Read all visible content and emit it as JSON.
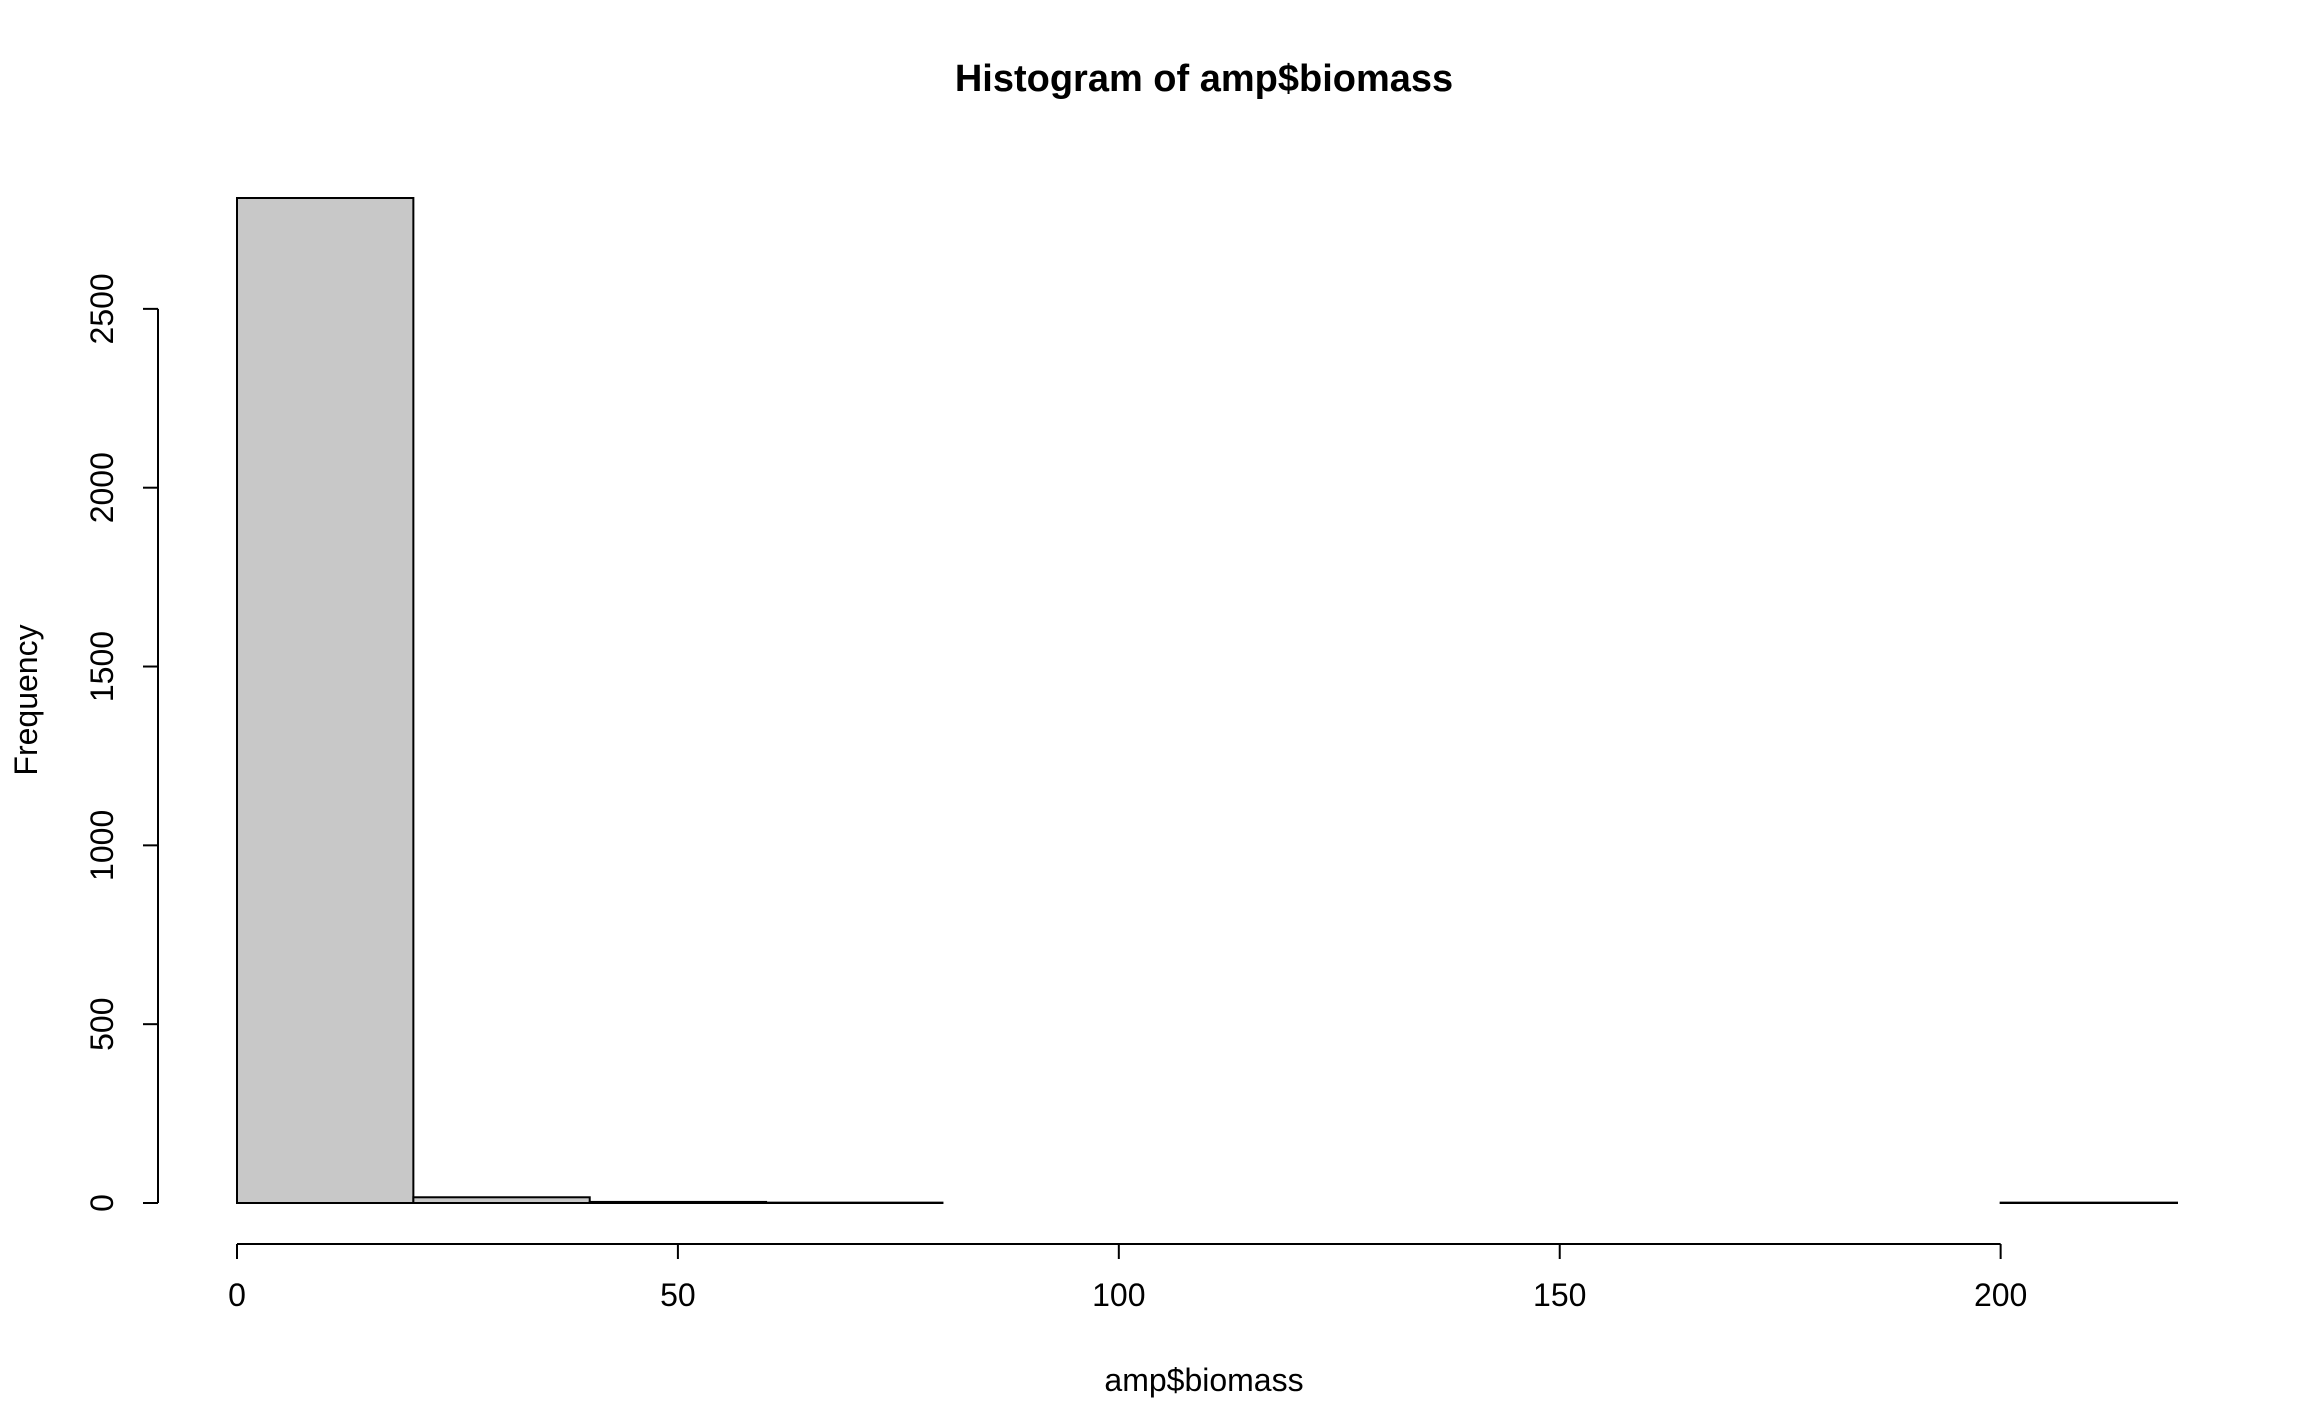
{
  "chart_data": {
    "type": "bar",
    "title": "Histogram of amp$biomass",
    "xlabel": "amp$biomass",
    "ylabel": "Frequency",
    "bins": [
      {
        "start": 0,
        "end": 20,
        "count": 2810
      },
      {
        "start": 20,
        "end": 40,
        "count": 16
      },
      {
        "start": 40,
        "end": 60,
        "count": 3
      },
      {
        "start": 60,
        "end": 80,
        "count": 1
      },
      {
        "start": 80,
        "end": 100,
        "count": 0
      },
      {
        "start": 100,
        "end": 120,
        "count": 0
      },
      {
        "start": 120,
        "end": 140,
        "count": 0
      },
      {
        "start": 140,
        "end": 160,
        "count": 0
      },
      {
        "start": 160,
        "end": 180,
        "count": 0
      },
      {
        "start": 180,
        "end": 200,
        "count": 0
      },
      {
        "start": 200,
        "end": 220,
        "count": 1
      }
    ],
    "xlim": [
      0,
      220
    ],
    "ylim": [
      0,
      2810
    ],
    "x_ticks": [
      0,
      50,
      100,
      150,
      200
    ],
    "y_ticks": [
      0,
      500,
      1000,
      1500,
      2000,
      2500
    ],
    "colors": {
      "bar_fill": "#c8c8c8",
      "bar_stroke": "#000000"
    }
  }
}
